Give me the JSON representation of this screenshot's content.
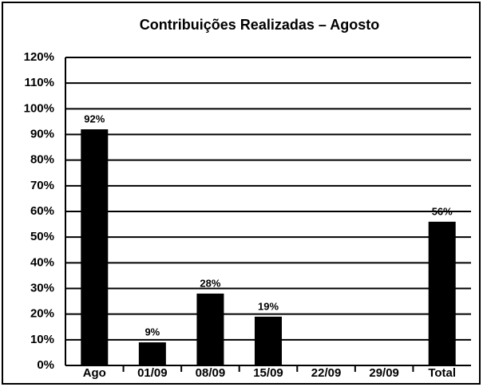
{
  "chart_data": {
    "type": "bar",
    "title": "Contribuições Realizadas – Agosto",
    "categories": [
      "Ago",
      "01/09",
      "08/09",
      "15/09",
      "22/09",
      "29/09",
      "Total"
    ],
    "values": [
      92,
      9,
      28,
      19,
      null,
      null,
      56
    ],
    "value_labels": [
      "92%",
      "9%",
      "28%",
      "19%",
      null,
      null,
      "56%"
    ],
    "color": "#000000",
    "ylim": [
      0,
      120
    ],
    "yticks": [
      {
        "value": 0,
        "label": "0%"
      },
      {
        "value": 10,
        "label": "10%"
      },
      {
        "value": 20,
        "label": "20%"
      },
      {
        "value": 30,
        "label": "30%"
      },
      {
        "value": 40,
        "label": "40%"
      },
      {
        "value": 50,
        "label": "50%"
      },
      {
        "value": 60,
        "label": "60%"
      },
      {
        "value": 70,
        "label": "70%"
      },
      {
        "value": 80,
        "label": "80%"
      },
      {
        "value": 90,
        "label": "90%"
      },
      {
        "value": 100,
        "label": "100%"
      },
      {
        "value": 110,
        "label": "110%"
      },
      {
        "value": 120,
        "label": "120%"
      }
    ],
    "grid": true
  }
}
